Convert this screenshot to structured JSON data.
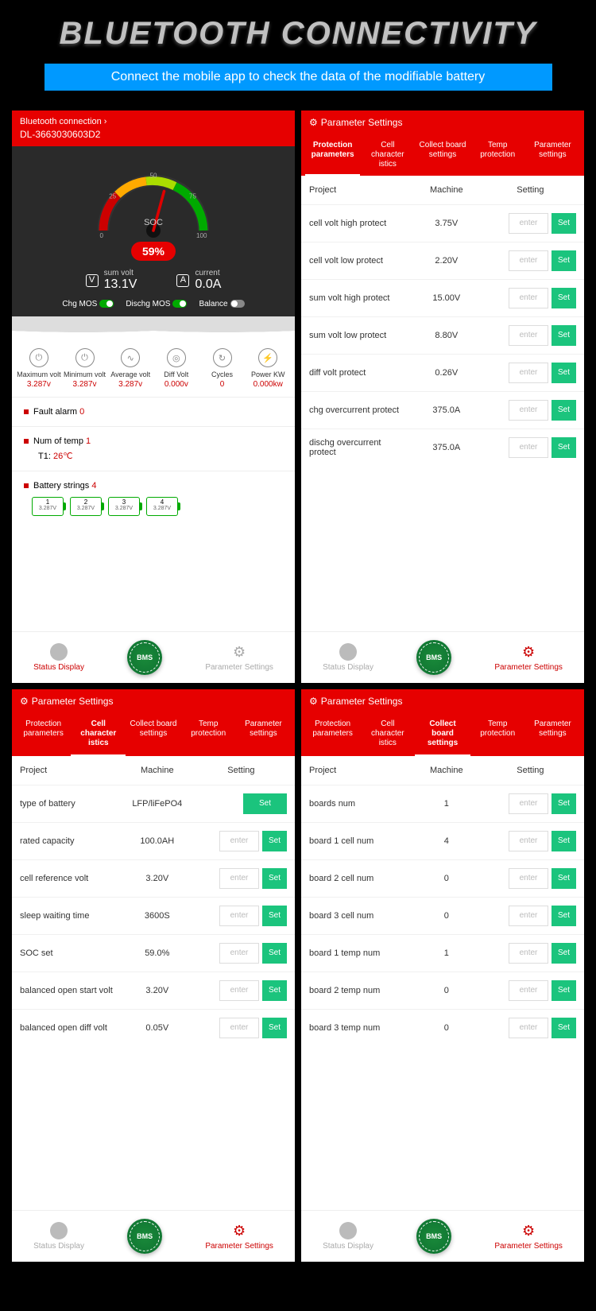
{
  "hero": {
    "title": "BLUETOOTH CONNECTIVITY",
    "subtitle": "Connect the mobile app to check the data of the modifiable battery"
  },
  "colors": {
    "red": "#e60000",
    "green_btn": "#1bc47d",
    "blue": "#0099ff",
    "dark": "#2a2a2a"
  },
  "tabs": [
    "Protection parameters",
    "Cell character istics",
    "Collect board settings",
    "Temp protection",
    "Parameter settings"
  ],
  "table_headers": {
    "project": "Project",
    "machine": "Machine",
    "setting": "Setting"
  },
  "labels": {
    "bt_conn": "Bluetooth connection",
    "param_settings": "Parameter Settings",
    "status_display": "Status Display",
    "enter": "enter",
    "set": "Set",
    "soc": "SOC",
    "sum_volt": "sum volt",
    "current": "current",
    "chg_mos": "Chg MOS",
    "dischg_mos": "Dischg MOS",
    "balance": "Balance",
    "fault_alarm": "Fault alarm",
    "num_temp": "Num of temp",
    "batt_strings": "Battery strings",
    "bms": "BMS"
  },
  "screen1": {
    "device_id": "DL-3663030603D2",
    "soc_pct": "59%",
    "sum_volt": "13.1V",
    "current": "0.0A",
    "gauge_ticks": [
      "0",
      "25",
      "50",
      "75",
      "100"
    ],
    "stats": [
      {
        "label": "Maximum volt",
        "val": "3.287v",
        "icon": "⏻"
      },
      {
        "label": "Minimum volt",
        "val": "3.287v",
        "icon": "⏻"
      },
      {
        "label": "Average volt",
        "val": "3.287v",
        "icon": "∿"
      },
      {
        "label": "Diff Volt",
        "val": "0.000v",
        "icon": "◎"
      },
      {
        "label": "Cycles",
        "val": "0",
        "icon": "↻"
      },
      {
        "label": "Power KW",
        "val": "0.000kw",
        "icon": "⚡"
      }
    ],
    "fault_count": "0",
    "temp_count": "1",
    "t1_label": "T1:",
    "t1_val": "26℃",
    "strings_count": "4",
    "cells": [
      {
        "n": "1",
        "v": "3.287V"
      },
      {
        "n": "2",
        "v": "3.287V"
      },
      {
        "n": "3",
        "v": "3.287V"
      },
      {
        "n": "4",
        "v": "3.287V"
      }
    ]
  },
  "screen2": {
    "active_tab": 0,
    "rows": [
      {
        "project": "cell volt high protect",
        "machine": "3.75V"
      },
      {
        "project": "cell volt low protect",
        "machine": "2.20V"
      },
      {
        "project": "sum volt high protect",
        "machine": "15.00V"
      },
      {
        "project": "sum volt low protect",
        "machine": "8.80V"
      },
      {
        "project": "diff volt protect",
        "machine": "0.26V"
      },
      {
        "project": "chg overcurrent protect",
        "machine": "375.0A"
      },
      {
        "project": "dischg overcurrent protect",
        "machine": "375.0A"
      }
    ]
  },
  "screen3": {
    "active_tab": 1,
    "rows": [
      {
        "project": "type of battery",
        "machine": "LFP/liFePO4",
        "no_input": true
      },
      {
        "project": "rated capacity",
        "machine": "100.0AH"
      },
      {
        "project": "cell reference volt",
        "machine": "3.20V"
      },
      {
        "project": "sleep waiting time",
        "machine": "3600S"
      },
      {
        "project": "SOC set",
        "machine": "59.0%"
      },
      {
        "project": "balanced open start volt",
        "machine": "3.20V"
      },
      {
        "project": "balanced open diff volt",
        "machine": "0.05V"
      }
    ]
  },
  "screen4": {
    "active_tab": 2,
    "rows": [
      {
        "project": "boards num",
        "machine": "1"
      },
      {
        "project": "board 1 cell num",
        "machine": "4"
      },
      {
        "project": "board 2 cell num",
        "machine": "0"
      },
      {
        "project": "board 3 cell num",
        "machine": "0"
      },
      {
        "project": "board 1 temp num",
        "machine": "1"
      },
      {
        "project": "board 2 temp num",
        "machine": "0"
      },
      {
        "project": "board 3 temp num",
        "machine": "0"
      }
    ]
  }
}
